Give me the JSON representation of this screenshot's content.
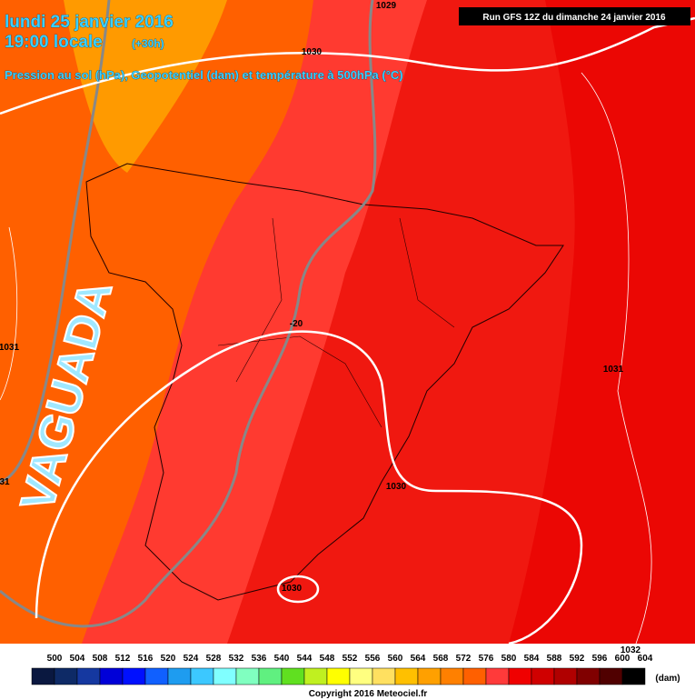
{
  "header": {
    "date": "lundi 25 janvier 2016",
    "time": "19:00 locale",
    "lead": "(+30h)",
    "subtitle": "Pression au sol (hPa), Geopotentiel (dam) et température à 500hPa (°C)",
    "run": "Run GFS 12Z du dimanche 24 janvier 2016"
  },
  "annotation": "VAGUADA",
  "contour_labels": [
    "1029",
    "1030",
    "1031",
    "31",
    "-20",
    "1031",
    "1030",
    "1030",
    "1032"
  ],
  "legend": {
    "labels": [
      "500",
      "504",
      "508",
      "512",
      "516",
      "520",
      "524",
      "528",
      "532",
      "536",
      "540",
      "544",
      "548",
      "552",
      "556",
      "560",
      "564",
      "568",
      "572",
      "576",
      "580",
      "584",
      "588",
      "592",
      "596",
      "600",
      "604"
    ],
    "colors": [
      "#0a1840",
      "#0e2a66",
      "#1538a0",
      "#0000d8",
      "#0010ff",
      "#1060ff",
      "#1e9cf0",
      "#3cc8ff",
      "#80ffff",
      "#80ffc0",
      "#60f080",
      "#60e020",
      "#c0f020",
      "#ffff00",
      "#ffff80",
      "#ffe060",
      "#ffc000",
      "#ffa000",
      "#ff8000",
      "#ff6000",
      "#ff3a3a",
      "#f00000",
      "#d00000",
      "#b00000",
      "#800000",
      "#500000",
      "#000000"
    ],
    "unit": "(dam)"
  },
  "copyright": "Copyright 2016 Meteociel.fr"
}
